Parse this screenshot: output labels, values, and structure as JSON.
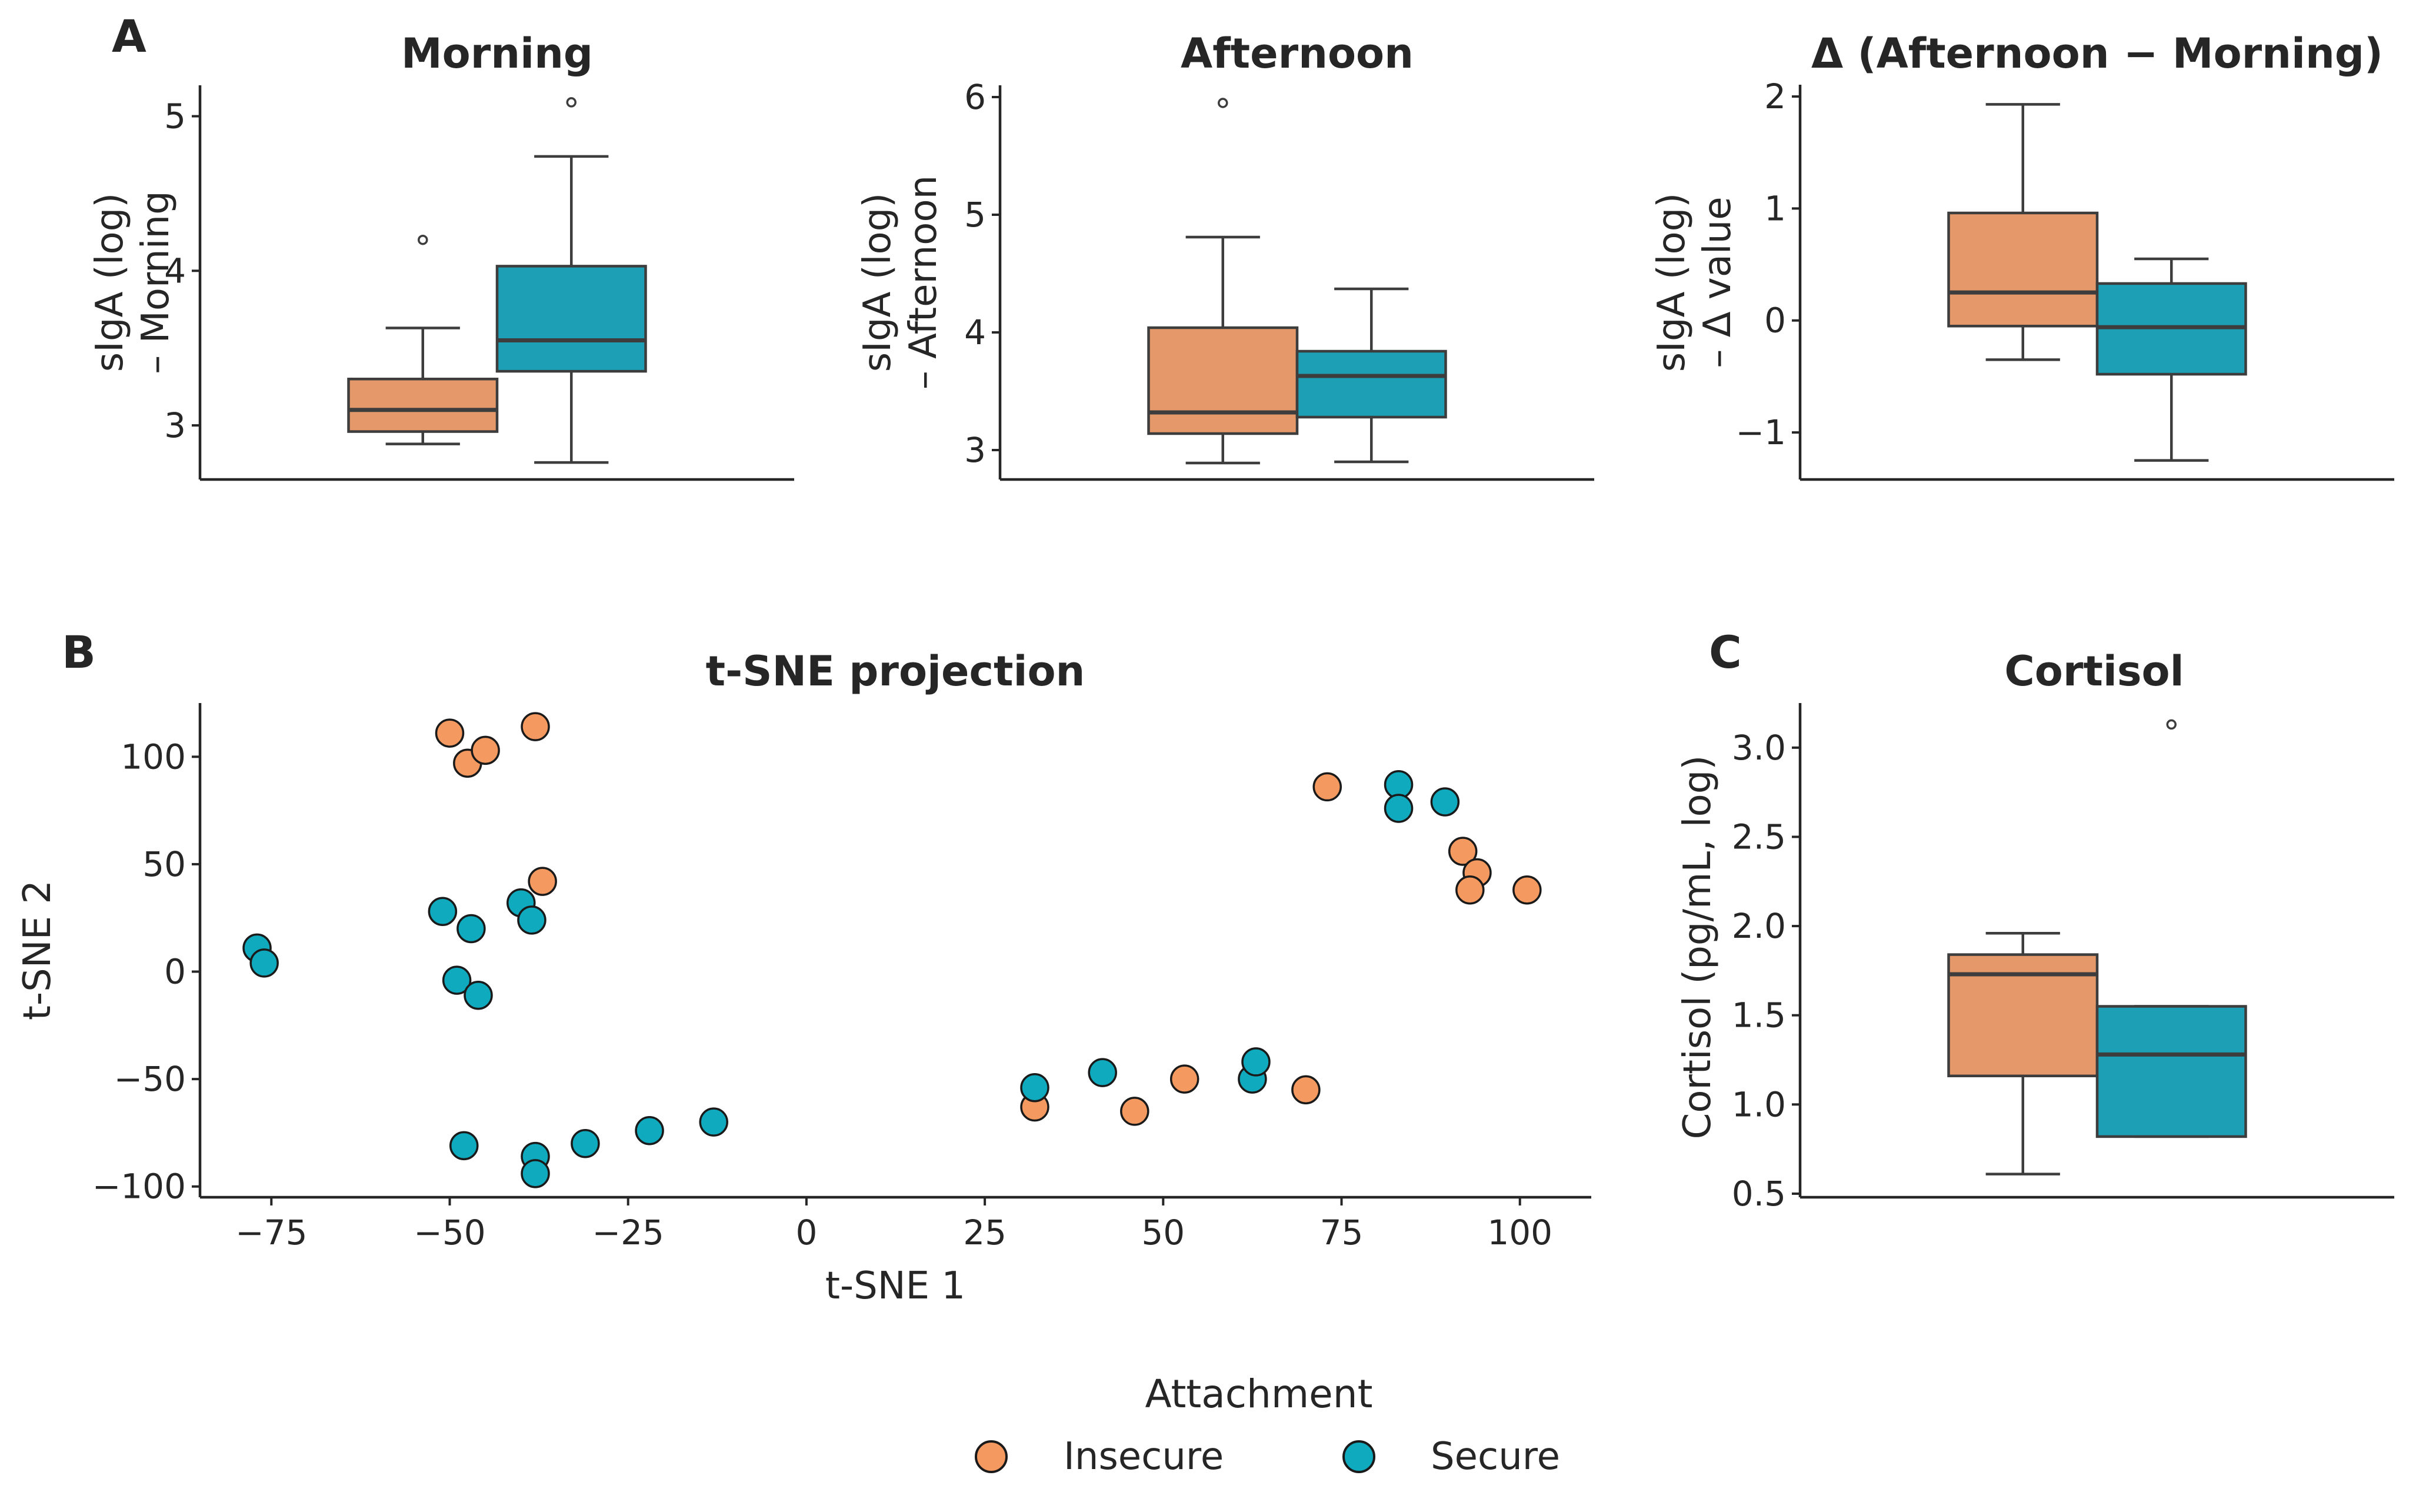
{
  "figure": {
    "legend": {
      "title": "Attachment",
      "items": [
        {
          "label": "Insecure",
          "color": "#F4995F"
        },
        {
          "label": "Secure",
          "color": "#0FAABE"
        }
      ]
    }
  },
  "chart_data": [
    {
      "panel_letter": "A",
      "type": "box",
      "title": "Morning",
      "ylabel_lines": [
        "sIgA (log)",
        "– Morning"
      ],
      "xlabel": "",
      "ylim": [
        2.65,
        5.2
      ],
      "yticks": [
        3,
        4,
        5
      ],
      "ytick_labels": [
        "3",
        "4",
        "5"
      ],
      "groups": [
        {
          "name": "Insecure",
          "color": "#E5986A",
          "whisker_low": 2.88,
          "q1": 2.96,
          "median": 3.1,
          "q3": 3.3,
          "whisker_high": 3.63,
          "outliers": [
            4.2
          ]
        },
        {
          "name": "Secure",
          "color": "#1DA0B5",
          "whisker_low": 2.76,
          "q1": 3.35,
          "median": 3.55,
          "q3": 4.03,
          "whisker_high": 4.74,
          "outliers": [
            5.09
          ]
        }
      ]
    },
    {
      "panel_letter": "",
      "type": "box",
      "title": "Afternoon",
      "ylabel_lines": [
        "sIgA (log)",
        "– Afternoon"
      ],
      "xlabel": "",
      "ylim": [
        2.75,
        6.1
      ],
      "yticks": [
        3,
        4,
        5,
        6
      ],
      "ytick_labels": [
        "3",
        "4",
        "5",
        "6"
      ],
      "groups": [
        {
          "name": "Insecure",
          "color": "#E5986A",
          "whisker_low": 2.89,
          "q1": 3.14,
          "median": 3.32,
          "q3": 4.04,
          "whisker_high": 4.81,
          "outliers": [
            5.95
          ]
        },
        {
          "name": "Secure",
          "color": "#1DA0B5",
          "whisker_low": 2.9,
          "q1": 3.28,
          "median": 3.63,
          "q3": 3.84,
          "whisker_high": 4.37,
          "outliers": []
        }
      ]
    },
    {
      "panel_letter": "",
      "type": "box",
      "title": "Δ (Afternoon − Morning)",
      "ylabel_lines": [
        "sIgA (log)",
        "– Δ value"
      ],
      "xlabel": "",
      "ylim": [
        -1.42,
        2.1
      ],
      "yticks": [
        -1,
        0,
        1,
        2
      ],
      "ytick_labels": [
        "−1",
        "0",
        "1",
        "2"
      ],
      "groups": [
        {
          "name": "Insecure",
          "color": "#E5986A",
          "whisker_low": -0.35,
          "q1": -0.05,
          "median": 0.25,
          "q3": 0.96,
          "whisker_high": 1.93,
          "outliers": []
        },
        {
          "name": "Secure",
          "color": "#1DA0B5",
          "whisker_low": -1.25,
          "q1": -0.48,
          "median": -0.06,
          "q3": 0.33,
          "whisker_high": 0.55,
          "outliers": []
        }
      ]
    },
    {
      "panel_letter": "B",
      "type": "scatter",
      "title": "t-SNE projection",
      "xlabel": "t-SNE 1",
      "ylabel": "t-SNE 2",
      "xlim": [
        -85,
        110
      ],
      "ylim": [
        -105,
        125
      ],
      "xticks": [
        -75,
        -50,
        -25,
        0,
        25,
        50,
        75,
        100
      ],
      "xtick_labels": [
        "−75",
        "−50",
        "−25",
        "0",
        "25",
        "50",
        "75",
        "100"
      ],
      "yticks": [
        -100,
        -50,
        0,
        50,
        100
      ],
      "ytick_labels": [
        "−100",
        "−50",
        "0",
        "50",
        "100"
      ],
      "series": [
        {
          "name": "Insecure",
          "color": "#F4995F",
          "points": [
            [
              -50,
              111
            ],
            [
              -47.5,
              97
            ],
            [
              -45,
              103
            ],
            [
              -38,
              114
            ],
            [
              -37,
              42
            ],
            [
              73,
              86
            ],
            [
              92,
              56
            ],
            [
              94,
              46
            ],
            [
              93,
              38
            ],
            [
              101,
              38
            ],
            [
              32,
              -63
            ],
            [
              46,
              -65
            ],
            [
              53,
              -50
            ],
            [
              70,
              -55
            ]
          ]
        },
        {
          "name": "Secure",
          "color": "#0FAABE",
          "points": [
            [
              -77,
              11
            ],
            [
              -76,
              4
            ],
            [
              -51,
              28
            ],
            [
              -47,
              20
            ],
            [
              -40,
              32
            ],
            [
              -38.5,
              24
            ],
            [
              -49,
              -4
            ],
            [
              -46,
              -11
            ],
            [
              -48,
              -81
            ],
            [
              -38,
              -86
            ],
            [
              -38,
              -94
            ],
            [
              -31,
              -80
            ],
            [
              -22,
              -74
            ],
            [
              -13,
              -70
            ],
            [
              32,
              -54
            ],
            [
              41.5,
              -47
            ],
            [
              62.5,
              -50
            ],
            [
              63,
              -42
            ],
            [
              83,
              87
            ],
            [
              83,
              76
            ],
            [
              89.5,
              79
            ]
          ]
        }
      ]
    },
    {
      "panel_letter": "C",
      "type": "box",
      "title": "Cortisol",
      "ylabel": "Cortisol (pg/mL, log)",
      "xlabel": "",
      "ylim": [
        0.48,
        3.25
      ],
      "yticks": [
        0.5,
        1.0,
        1.5,
        2.0,
        2.5,
        3.0
      ],
      "ytick_labels": [
        "0.5",
        "1.0",
        "1.5",
        "2.0",
        "2.5",
        "3.0"
      ],
      "groups": [
        {
          "name": "Insecure",
          "color": "#E5986A",
          "whisker_low": 0.61,
          "q1": 1.16,
          "median": 1.73,
          "q3": 1.84,
          "whisker_high": 1.96,
          "outliers": []
        },
        {
          "name": "Secure",
          "color": "#1DA0B5",
          "whisker_low": 0.82,
          "q1": 0.82,
          "median": 1.28,
          "q3": 1.55,
          "whisker_high": 1.55,
          "outliers": [
            3.13
          ]
        }
      ]
    }
  ]
}
